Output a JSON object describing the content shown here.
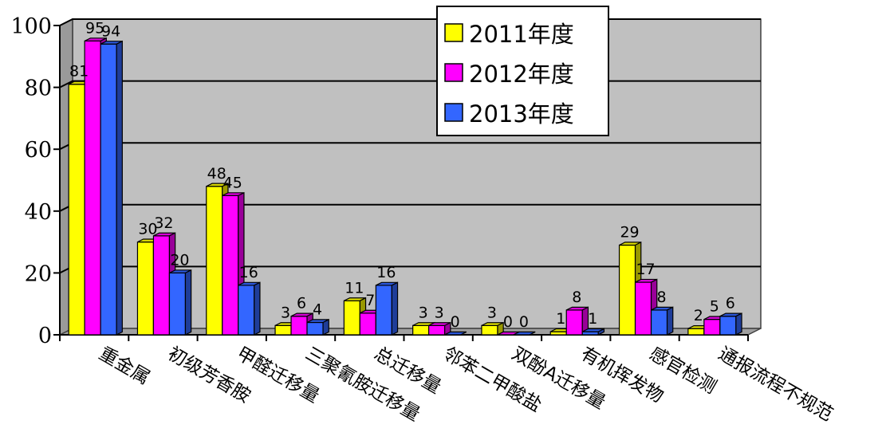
{
  "chart_data": {
    "type": "bar",
    "categories": [
      "重金属",
      "初级芳香胺",
      "甲醛迁移量",
      "三聚氰胺迁移量",
      "总迁移量",
      "邻苯二甲酸盐",
      "双酚A迁移量",
      "有机挥发物",
      "感官检测",
      "通报流程不规范"
    ],
    "series": [
      {
        "name": "2011年度",
        "color": "#ffff00",
        "values": [
          81,
          30,
          48,
          3,
          11,
          3,
          3,
          1,
          29,
          2
        ]
      },
      {
        "name": "2012年度",
        "color": "#ff00ff",
        "values": [
          95,
          32,
          45,
          6,
          7,
          3,
          0,
          8,
          17,
          5
        ]
      },
      {
        "name": "2013年度",
        "color": "#3366ff",
        "values": [
          94,
          20,
          16,
          4,
          16,
          0,
          0,
          1,
          8,
          6
        ]
      }
    ],
    "y_ticks": [
      "0",
      "20",
      "40",
      "60",
      "80",
      "100"
    ],
    "ylim": [
      0,
      100
    ],
    "grid": true,
    "legend_position": "top-right",
    "plot_background": "#c0c0c0"
  }
}
